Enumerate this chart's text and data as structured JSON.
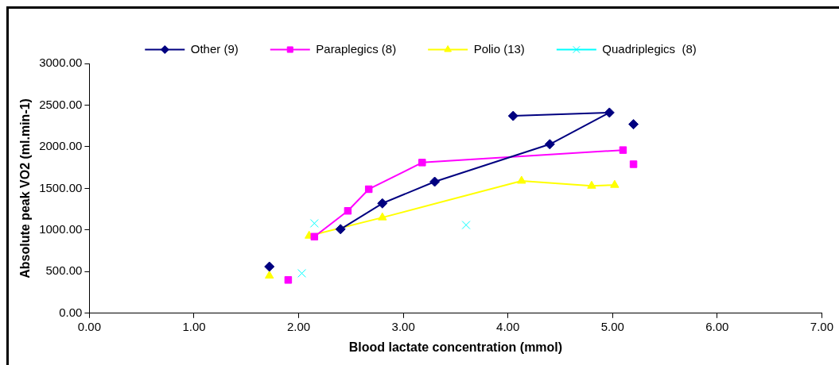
{
  "chart_data": {
    "type": "scatter",
    "xlabel": "Blood lactate concentration (mmol)",
    "ylabel": "Absolute peak VO2 (ml.min-1)",
    "xlim": [
      0,
      7
    ],
    "ylim": [
      0,
      3000
    ],
    "xticks": [
      {
        "value": 0,
        "label": "0.00"
      },
      {
        "value": 1,
        "label": "1.00"
      },
      {
        "value": 2,
        "label": "2.00"
      },
      {
        "value": 3,
        "label": "3.00"
      },
      {
        "value": 4,
        "label": "4.00"
      },
      {
        "value": 5,
        "label": "5.00"
      },
      {
        "value": 6,
        "label": "6.00"
      },
      {
        "value": 7,
        "label": "7.00"
      }
    ],
    "yticks": [
      {
        "value": 0,
        "label": "0.00"
      },
      {
        "value": 500,
        "label": "500.00"
      },
      {
        "value": 1000,
        "label": "1000.00"
      },
      {
        "value": 1500,
        "label": "1500.00"
      },
      {
        "value": 2000,
        "label": "2000.00"
      },
      {
        "value": 2500,
        "label": "2500.00"
      },
      {
        "value": 3000,
        "label": "3000.00"
      }
    ],
    "grid": false,
    "legend": "top",
    "line_style": "solid",
    "series": [
      {
        "name": "Other (9)",
        "type": "line",
        "color": "#000080",
        "marker": "diamond",
        "x": [
          2.4,
          2.8,
          3.3,
          4.4,
          4.97,
          4.05
        ],
        "values": [
          1010,
          1320,
          1580,
          2030,
          2410,
          2370
        ]
      },
      {
        "color": "#000080",
        "marker": "diamond",
        "x": [
          1.72,
          5.2
        ],
        "values": [
          560,
          2270
        ]
      },
      {
        "name": "Paraplegics (8)",
        "type": "line",
        "color": "#ff00ff",
        "marker": "square",
        "x": [
          2.15,
          2.47,
          2.67,
          3.18,
          5.1
        ],
        "values": [
          920,
          1230,
          1490,
          1810,
          1960
        ]
      },
      {
        "color": "#ff00ff",
        "marker": "square",
        "x": [
          1.9,
          5.2
        ],
        "values": [
          400,
          1790
        ]
      },
      {
        "name": "Polio (13)",
        "type": "line",
        "color": "#ffff00",
        "marker": "triangle",
        "x": [
          2.1,
          2.8,
          4.13,
          4.8,
          5.02
        ],
        "values": [
          930,
          1150,
          1590,
          1530,
          1540
        ]
      },
      {
        "color": "#ffff00",
        "marker": "triangle",
        "x": [
          1.72
        ],
        "values": [
          450
        ]
      },
      {
        "name": "Quadriplegics  (8)",
        "color": "#00ffff",
        "marker": "cross",
        "x": [
          2.03,
          2.15,
          3.6
        ],
        "values": [
          480,
          1080,
          1060
        ]
      }
    ]
  }
}
